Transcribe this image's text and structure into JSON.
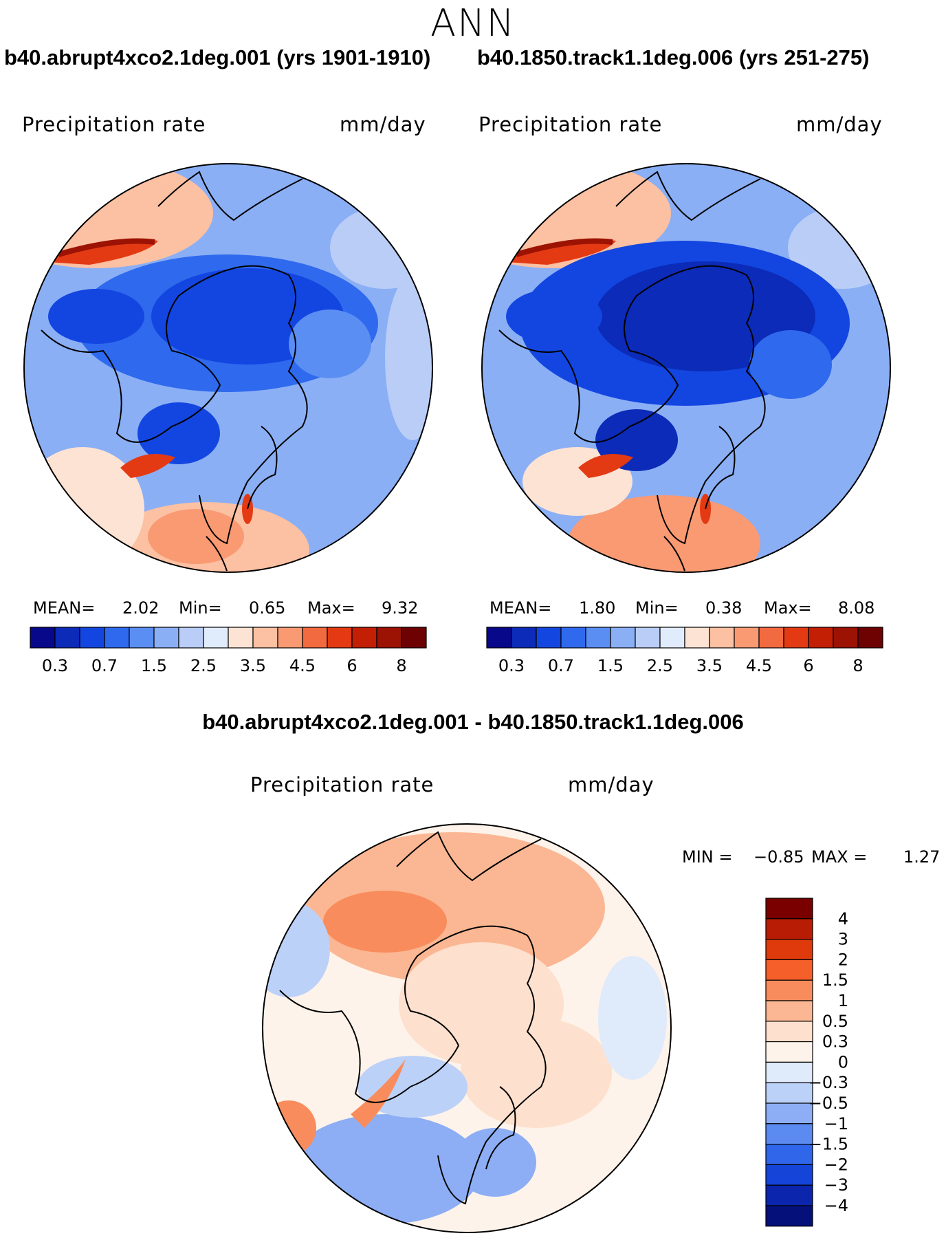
{
  "page": {
    "season": "ANN"
  },
  "panels": [
    {
      "case_title": "b40.abrupt4xco2.1deg.001 (yrs 1901-1910)",
      "variable": "Precipitation rate",
      "units": "mm/day",
      "stats": {
        "mean_label": "MEAN=",
        "mean": "2.02",
        "min_label": "Min=",
        "min": "0.65",
        "max_label": "Max=",
        "max": "9.32"
      }
    },
    {
      "case_title": "b40.1850.track1.1deg.006 (yrs 251-275)",
      "variable": "Precipitation rate",
      "units": "mm/day",
      "stats": {
        "mean_label": "MEAN=",
        "mean": "1.80",
        "min_label": "Min=",
        "min": "0.38",
        "max_label": "Max=",
        "max": "8.08"
      }
    }
  ],
  "abs_colorbar": {
    "colors": [
      "#08088a",
      "#0b2bb8",
      "#1346e0",
      "#2f69ee",
      "#5a8ef2",
      "#8aaff5",
      "#b9cdf7",
      "#e0ebfb",
      "#fde3d3",
      "#fcc0a2",
      "#f99a73",
      "#f26a3f",
      "#e33a14",
      "#c21f05",
      "#9c1203",
      "#6e0202"
    ],
    "ticks": [
      "0.3",
      "0.7",
      "1.5",
      "2.5",
      "3.5",
      "4.5",
      "6",
      "8"
    ]
  },
  "diff_panel": {
    "title": "b40.abrupt4xco2.1deg.001 - b40.1850.track1.1deg.006",
    "variable": "Precipitation rate",
    "units": "mm/day",
    "stats": {
      "min_label": "MIN =",
      "min": "−0.85",
      "max_label": "MAX =",
      "max": "1.27"
    }
  },
  "diff_colorbar": {
    "colors": [
      "#7a0000",
      "#b81c04",
      "#de3a0c",
      "#f55f2a",
      "#f98c5c",
      "#fbb793",
      "#fde0cd",
      "#fdf3ea",
      "#dfeafb",
      "#bcd1f8",
      "#8daef4",
      "#5b8bf0",
      "#2f66ea",
      "#1444d8",
      "#0b26ac",
      "#05107a"
    ],
    "ticks": [
      "4",
      "3",
      "2",
      "1.5",
      "1",
      "0.5",
      "0.3",
      "0",
      "−0.3",
      "−0.5",
      "−1",
      "−1.5",
      "−2",
      "−3",
      "−4"
    ]
  }
}
